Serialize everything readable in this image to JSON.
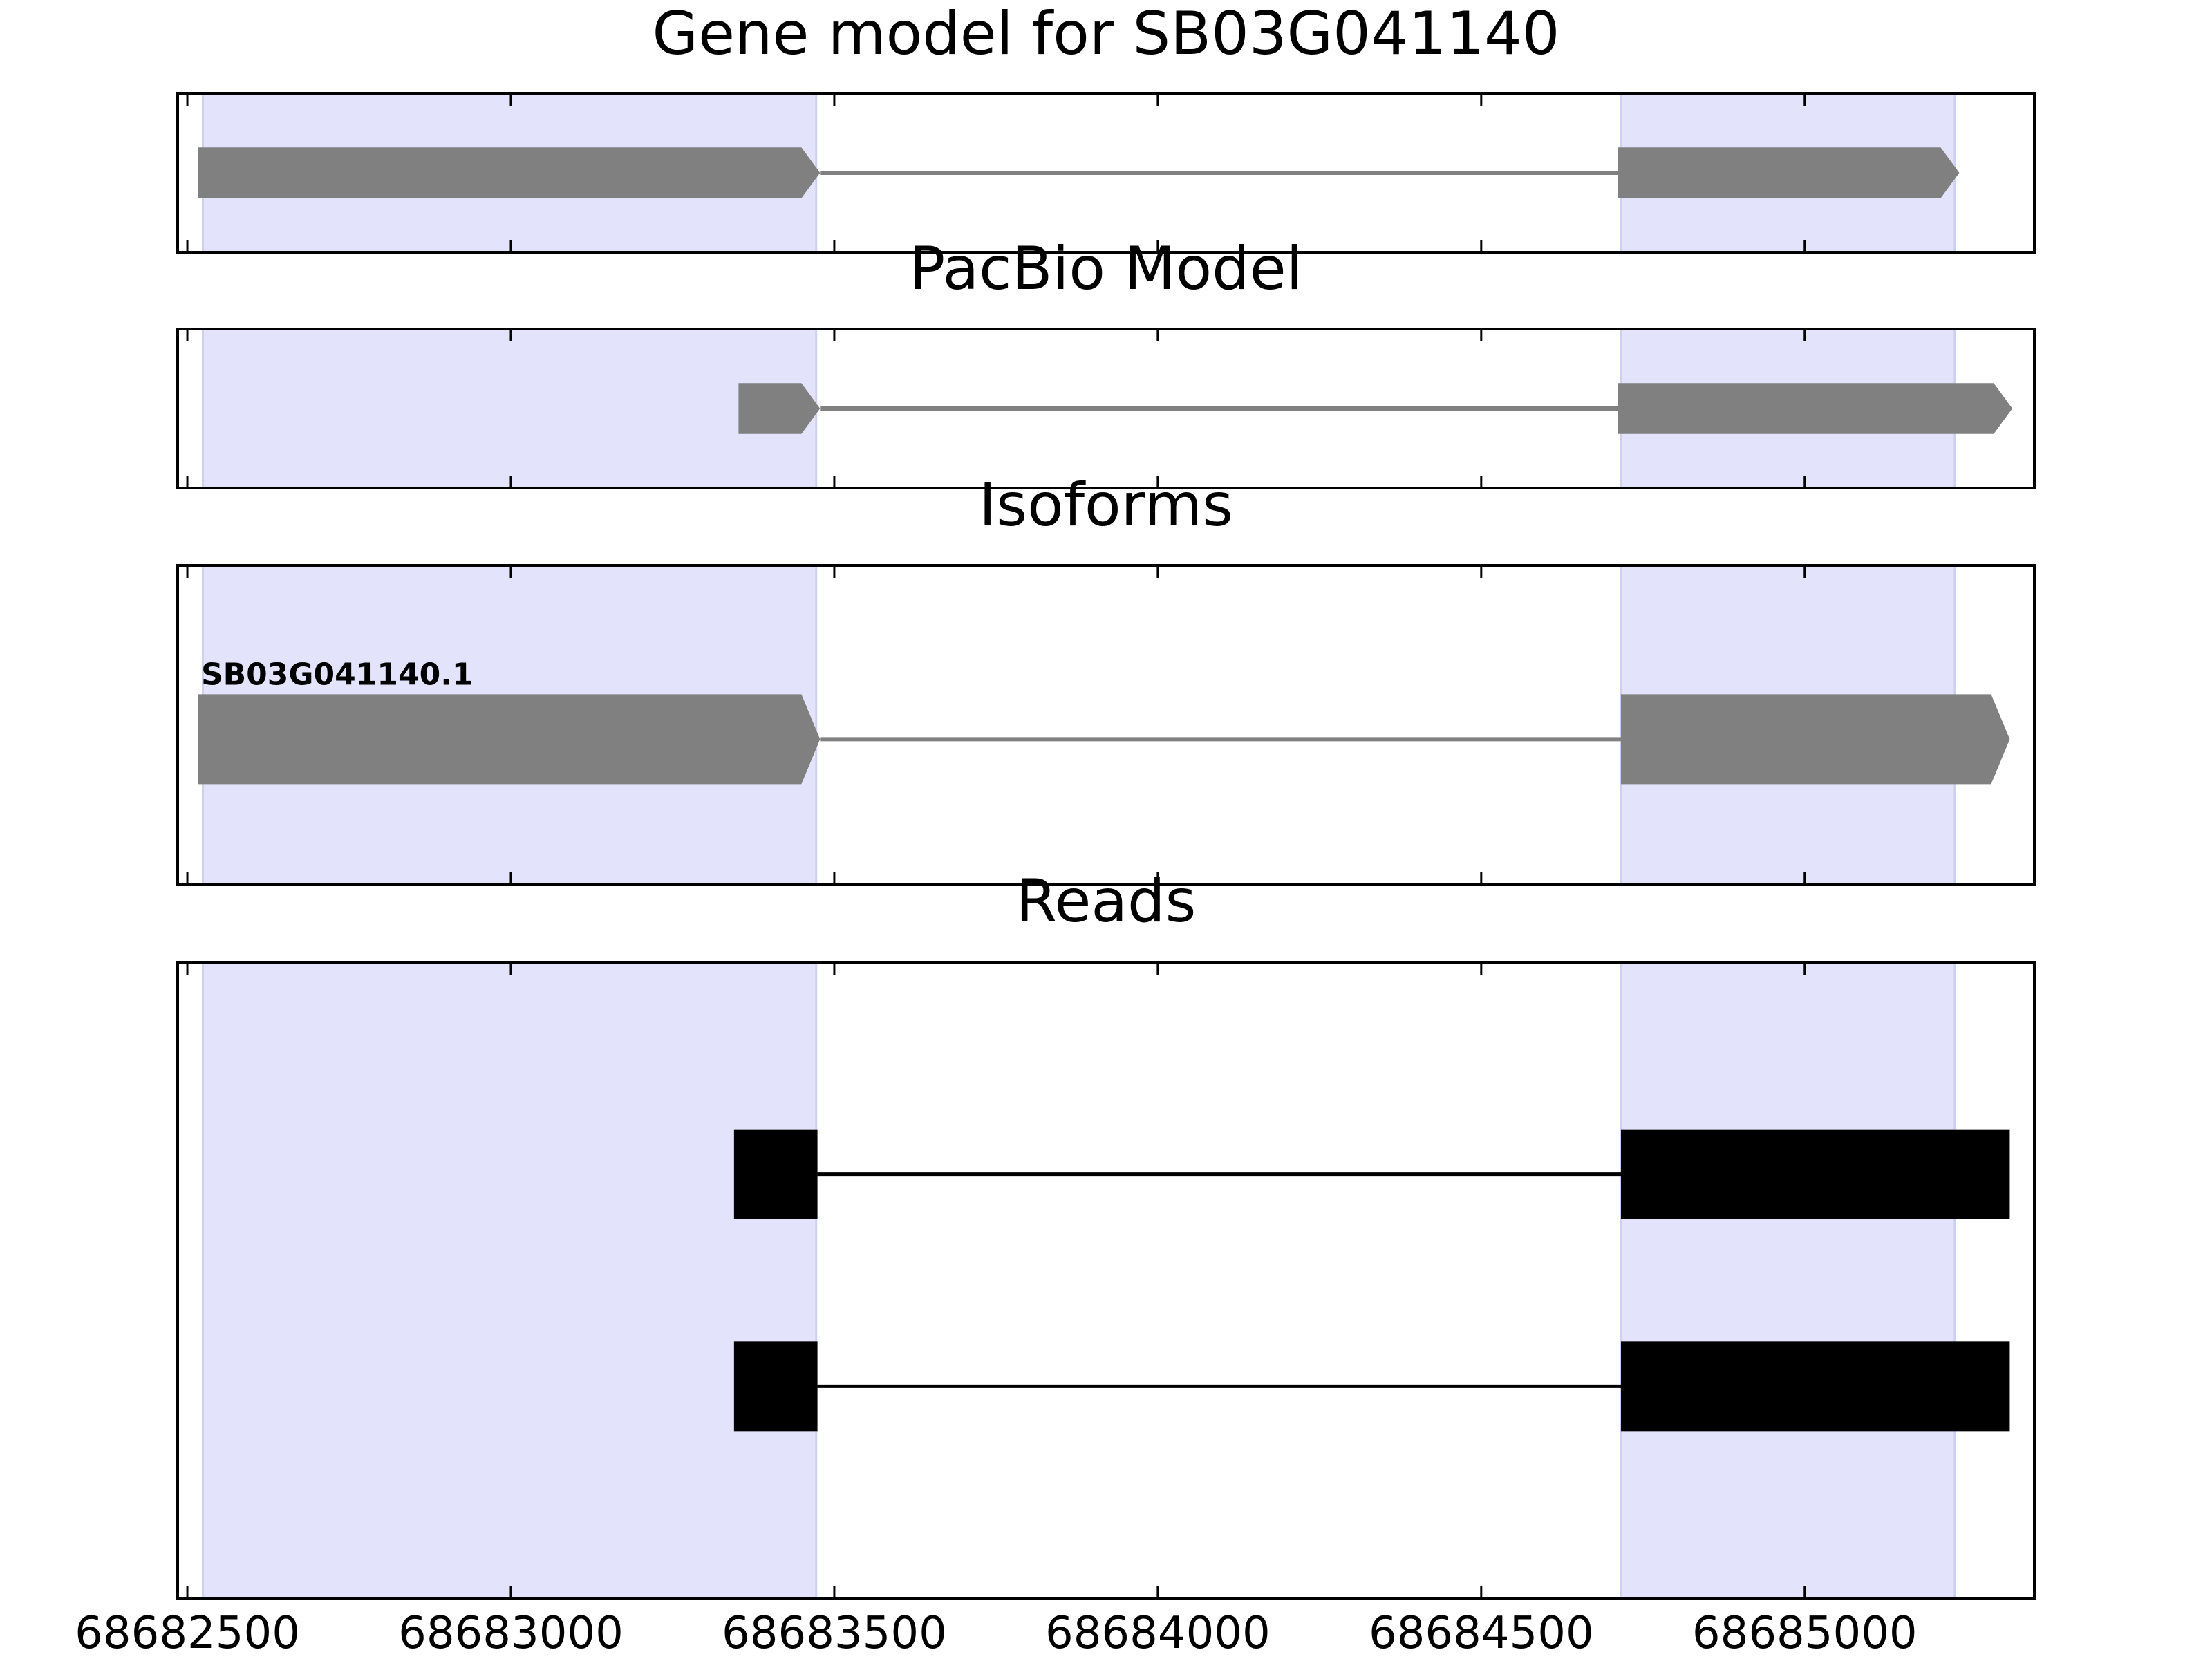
{
  "chart_data": [
    {
      "type": "gene-track",
      "title": "Gene model for SB03G041140",
      "style": "arrow",
      "strand": "+",
      "color": "#808080",
      "xlim": [
        68682485,
        68685355
      ],
      "highlights": [
        [
          68682524,
          68683472
        ],
        [
          68684716,
          68685232
        ]
      ],
      "highlight_color": "#e3e3fc",
      "features": [
        {
          "exons": [
            [
              68682517,
              68683478
            ],
            [
              68684711,
              68685239
            ]
          ]
        }
      ]
    },
    {
      "type": "gene-track",
      "title": "PacBio Model",
      "style": "arrow",
      "strand": "+",
      "color": "#808080",
      "xlim": [
        68682485,
        68685355
      ],
      "highlights": [
        [
          68682524,
          68683472
        ],
        [
          68684716,
          68685232
        ]
      ],
      "highlight_color": "#e3e3fc",
      "features": [
        {
          "exons": [
            [
              68683352,
              68683478
            ],
            [
              68684711,
              68685321
            ]
          ]
        }
      ]
    },
    {
      "type": "gene-track",
      "title": "Isoforms",
      "style": "arrow",
      "strand": "+",
      "color": "#808080",
      "xlim": [
        68682485,
        68685355
      ],
      "highlights": [
        [
          68682524,
          68683472
        ],
        [
          68684716,
          68685232
        ]
      ],
      "highlight_color": "#e3e3fc",
      "features": [
        {
          "label": "SB03G041140.1",
          "exons": [
            [
              68682517,
              68683478
            ],
            [
              68684716,
              68685317
            ]
          ]
        }
      ]
    },
    {
      "type": "gene-track",
      "title": "Reads",
      "style": "box",
      "color": "#000000",
      "xlim": [
        68682485,
        68685355
      ],
      "highlights": [
        [
          68682524,
          68683472
        ],
        [
          68684716,
          68685232
        ]
      ],
      "highlight_color": "#e3e3fc",
      "xticks": [
        68682500,
        68683000,
        68683500,
        68684000,
        68684500,
        68685000
      ],
      "features": [
        {
          "exons": [
            [
              68683345,
              68683474
            ],
            [
              68684716,
              68685317
            ]
          ]
        },
        {
          "exons": [
            [
              68683345,
              68683474
            ],
            [
              68684716,
              68685317
            ]
          ]
        }
      ]
    }
  ]
}
